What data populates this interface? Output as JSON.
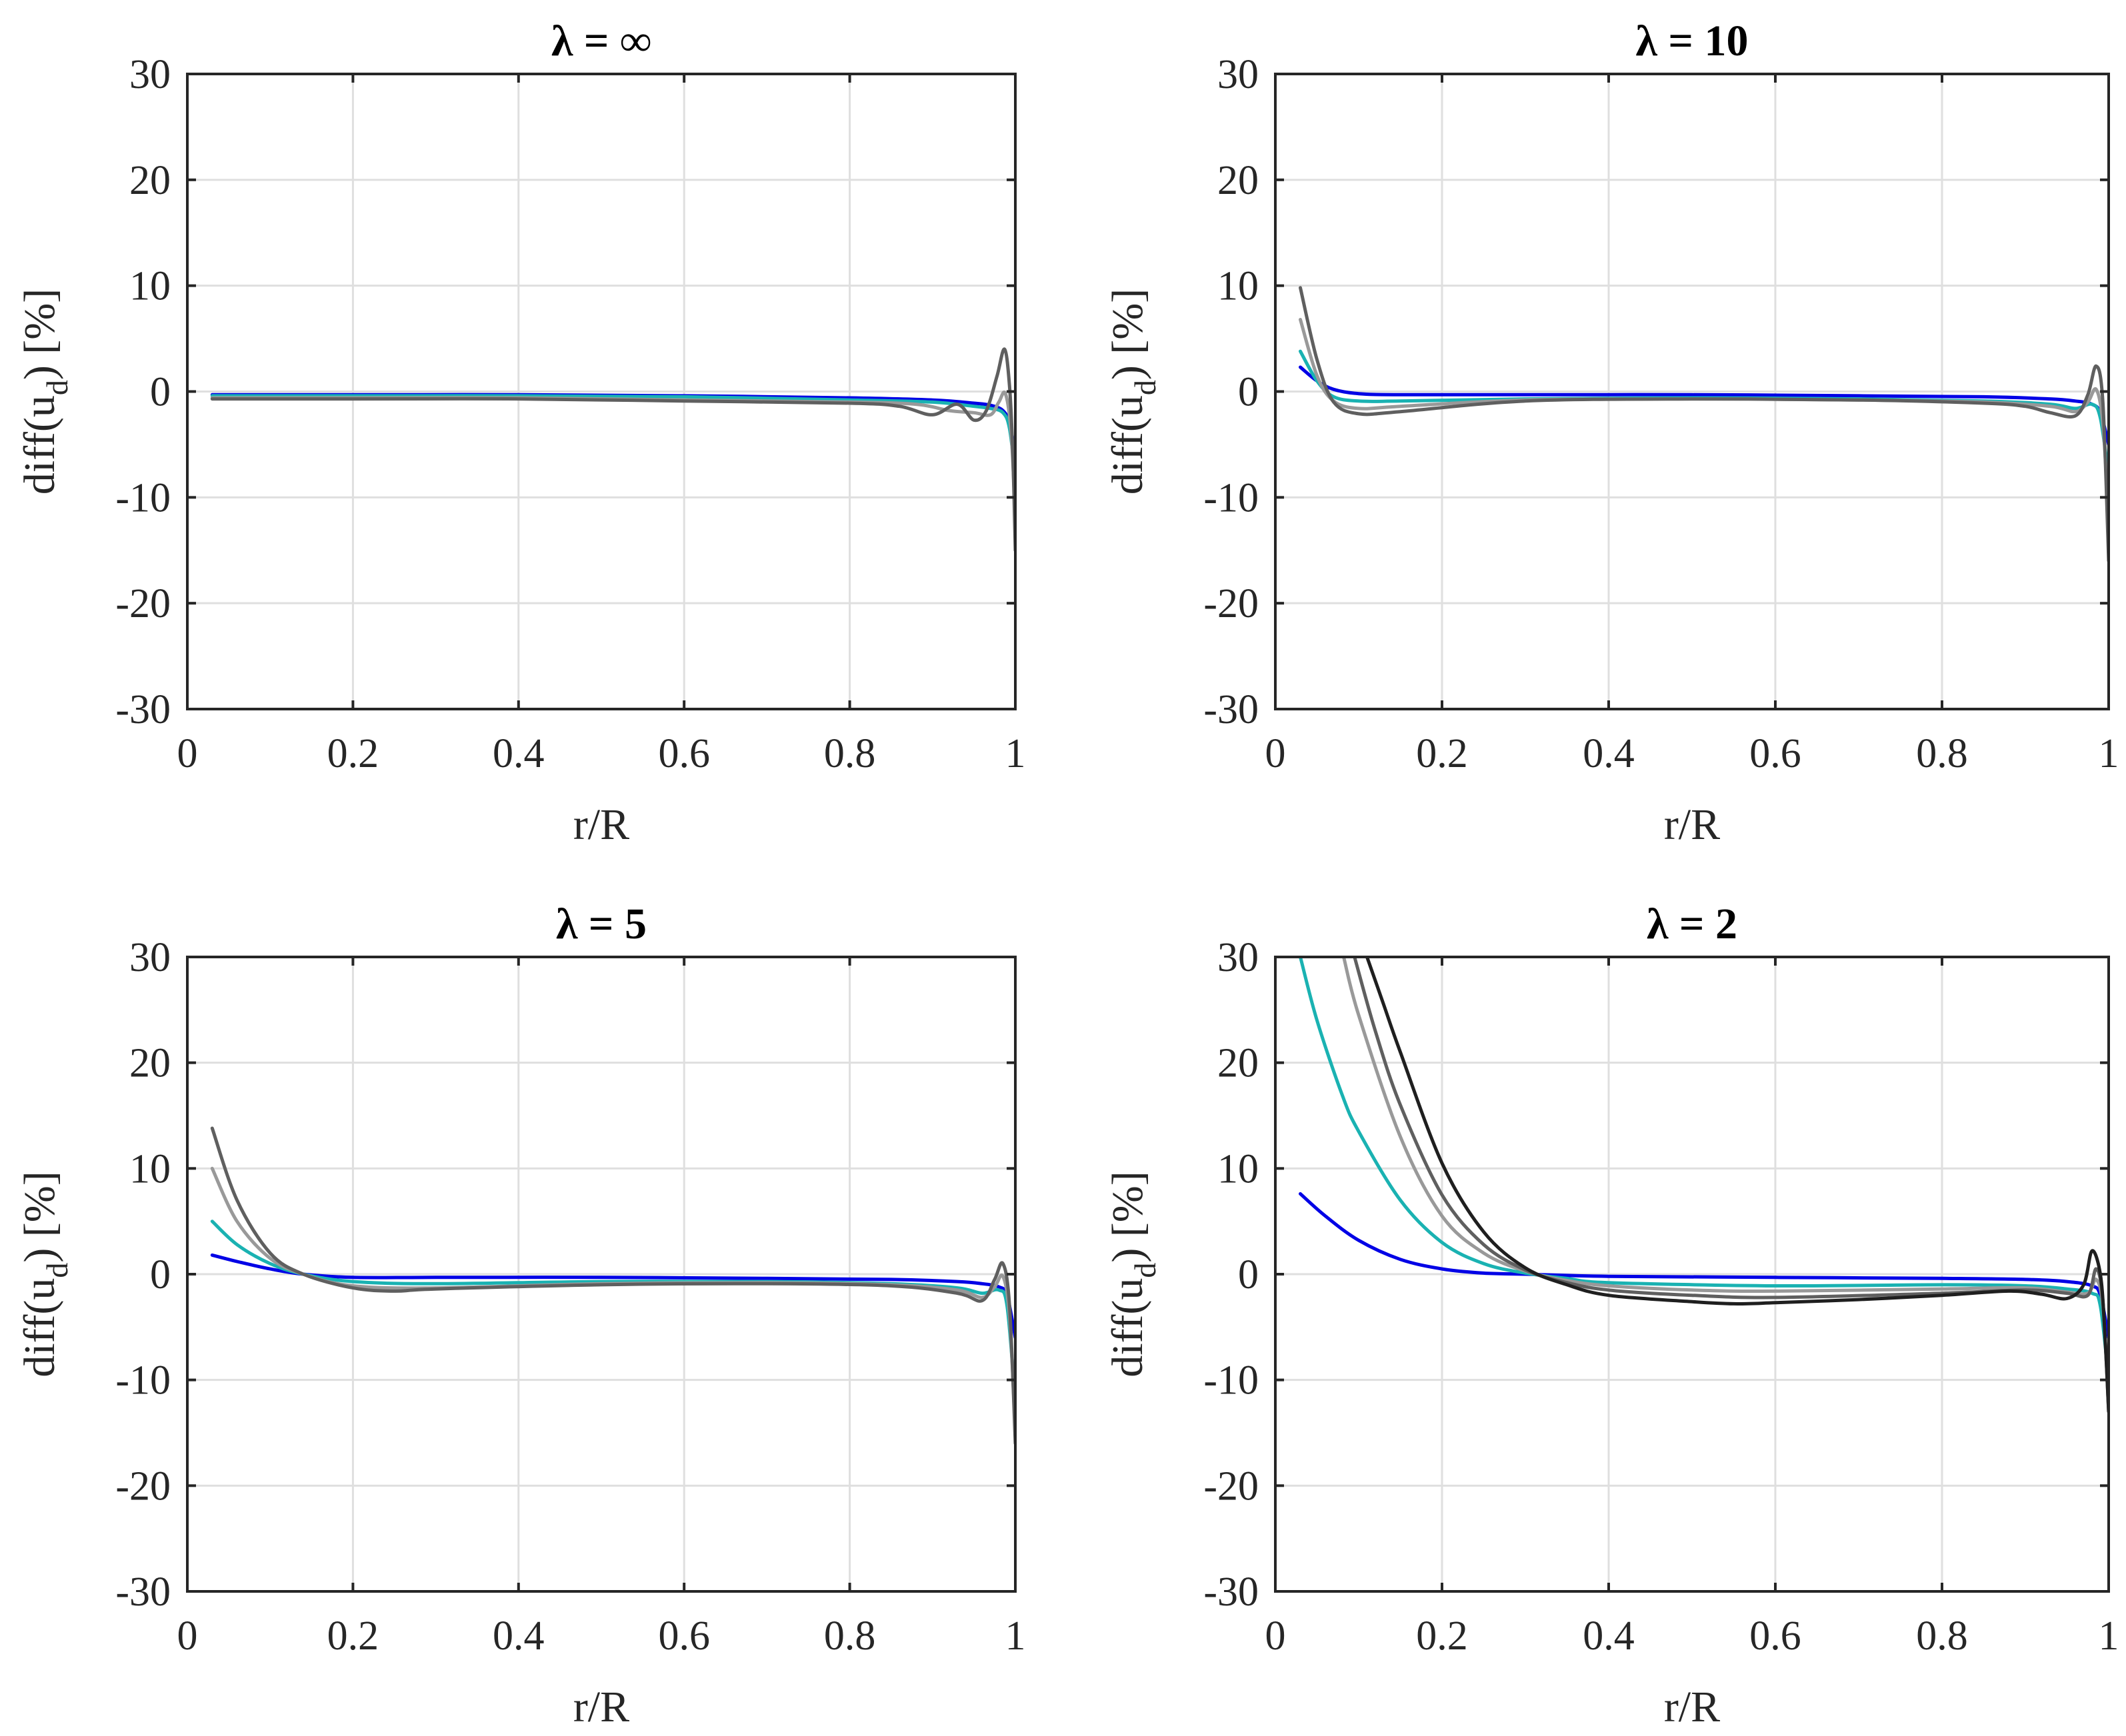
{
  "chart_data": [
    {
      "type": "line",
      "title": "λ = ∞",
      "xlabel": "r/R",
      "ylabel_main": "diff(u",
      "ylabel_sub": "d",
      "ylabel_end": ") [%]",
      "xlim": [
        0,
        1
      ],
      "ylim": [
        -30,
        30
      ],
      "xticks": [
        0,
        0.2,
        0.4,
        0.6,
        0.8,
        1
      ],
      "xtick_labels": [
        "0",
        "0.2",
        "0.4",
        "0.6",
        "0.8",
        "1"
      ],
      "yticks": [
        -30,
        -20,
        -10,
        0,
        10,
        20,
        30
      ],
      "ytick_labels": [
        "-30",
        "-20",
        "-10",
        "0",
        "10",
        "20",
        "30"
      ],
      "grid": true,
      "series": [
        {
          "name": "blue",
          "color": "#0000e6",
          "x": [
            0.03,
            0.2,
            0.4,
            0.6,
            0.8,
            0.9,
            0.95,
            0.97,
            0.985,
            0.993,
            1.0
          ],
          "y": [
            -0.3,
            -0.3,
            -0.3,
            -0.4,
            -0.6,
            -0.8,
            -1.1,
            -1.3,
            -1.8,
            -3.0,
            -6.0
          ]
        },
        {
          "name": "cyan",
          "color": "#1ab2b2",
          "x": [
            0.03,
            0.2,
            0.4,
            0.6,
            0.8,
            0.9,
            0.95,
            0.97,
            0.985,
            0.993,
            1.0
          ],
          "y": [
            -0.4,
            -0.4,
            -0.4,
            -0.5,
            -0.8,
            -1.0,
            -1.4,
            -1.6,
            -2.0,
            -3.5,
            -8.0
          ]
        },
        {
          "name": "light-grey",
          "color": "#999999",
          "x": [
            0.03,
            0.2,
            0.4,
            0.6,
            0.8,
            0.88,
            0.92,
            0.95,
            0.97,
            0.98,
            0.988,
            0.995,
            1.0
          ],
          "y": [
            -0.6,
            -0.6,
            -0.6,
            -0.8,
            -1.0,
            -1.2,
            -1.8,
            -2.0,
            -2.2,
            -1.0,
            -0.2,
            -4.0,
            -12.0
          ]
        },
        {
          "name": "dark-grey",
          "color": "#5f5f5f",
          "x": [
            0.03,
            0.2,
            0.4,
            0.6,
            0.8,
            0.86,
            0.9,
            0.93,
            0.95,
            0.965,
            0.978,
            0.987,
            0.993,
            0.997,
            1.0
          ],
          "y": [
            -0.7,
            -0.7,
            -0.7,
            -0.9,
            -1.1,
            -1.4,
            -2.2,
            -1.2,
            -2.7,
            -1.8,
            1.5,
            4.0,
            0.5,
            -6.0,
            -15.0
          ]
        }
      ]
    },
    {
      "type": "line",
      "title": "λ = 10",
      "xlabel": "r/R",
      "ylabel_main": "diff(u",
      "ylabel_sub": "d",
      "ylabel_end": ") [%]",
      "xlim": [
        0,
        1
      ],
      "ylim": [
        -30,
        30
      ],
      "xticks": [
        0,
        0.2,
        0.4,
        0.6,
        0.8,
        1
      ],
      "xtick_labels": [
        "0",
        "0.2",
        "0.4",
        "0.6",
        "0.8",
        "1"
      ],
      "yticks": [
        -30,
        -20,
        -10,
        0,
        10,
        20,
        30
      ],
      "ytick_labels": [
        "-30",
        "-20",
        "-10",
        "0",
        "10",
        "20",
        "30"
      ],
      "grid": true,
      "series": [
        {
          "name": "blue",
          "color": "#0000e6",
          "x": [
            0.03,
            0.05,
            0.07,
            0.1,
            0.15,
            0.3,
            0.5,
            0.7,
            0.85,
            0.93,
            0.96,
            0.98,
            0.99,
            1.0
          ],
          "y": [
            2.3,
            1.0,
            0.2,
            -0.2,
            -0.3,
            -0.3,
            -0.3,
            -0.4,
            -0.5,
            -0.7,
            -0.9,
            -1.2,
            -2.0,
            -5.0
          ]
        },
        {
          "name": "cyan",
          "color": "#1ab2b2",
          "x": [
            0.03,
            0.05,
            0.07,
            0.1,
            0.15,
            0.3,
            0.5,
            0.7,
            0.85,
            0.93,
            0.96,
            0.98,
            0.99,
            1.0
          ],
          "y": [
            3.8,
            1.0,
            -0.5,
            -0.9,
            -0.9,
            -0.7,
            -0.6,
            -0.7,
            -0.9,
            -1.2,
            -1.6,
            -1.2,
            -2.5,
            -8.0
          ]
        },
        {
          "name": "light-grey",
          "color": "#999999",
          "x": [
            0.03,
            0.05,
            0.07,
            0.1,
            0.15,
            0.3,
            0.5,
            0.7,
            0.85,
            0.93,
            0.96,
            0.975,
            0.985,
            0.993,
            1.0
          ],
          "y": [
            6.8,
            1.5,
            -0.9,
            -1.6,
            -1.4,
            -0.8,
            -0.7,
            -0.8,
            -1.0,
            -1.4,
            -1.9,
            -1.0,
            0.2,
            -3.0,
            -12.0
          ]
        },
        {
          "name": "dark-grey",
          "color": "#5f5f5f",
          "x": [
            0.03,
            0.05,
            0.07,
            0.1,
            0.15,
            0.3,
            0.5,
            0.7,
            0.85,
            0.9,
            0.93,
            0.96,
            0.975,
            0.985,
            0.993,
            1.0
          ],
          "y": [
            9.8,
            3.0,
            -1.0,
            -2.1,
            -1.9,
            -0.9,
            -0.7,
            -0.8,
            -1.1,
            -1.4,
            -2.0,
            -2.3,
            -0.3,
            2.4,
            -1.0,
            -16.0
          ]
        }
      ]
    },
    {
      "type": "line",
      "title": "λ = 5",
      "xlabel": "r/R",
      "ylabel_main": "diff(u",
      "ylabel_sub": "d",
      "ylabel_end": ") [%]",
      "xlim": [
        0,
        1
      ],
      "ylim": [
        -30,
        30
      ],
      "xticks": [
        0,
        0.2,
        0.4,
        0.6,
        0.8,
        1
      ],
      "xtick_labels": [
        "0",
        "0.2",
        "0.4",
        "0.6",
        "0.8",
        "1"
      ],
      "yticks": [
        -30,
        -20,
        -10,
        0,
        10,
        20,
        30
      ],
      "ytick_labels": [
        "-30",
        "-20",
        "-10",
        "0",
        "10",
        "20",
        "30"
      ],
      "grid": true,
      "series": [
        {
          "name": "blue",
          "color": "#0000e6",
          "x": [
            0.03,
            0.06,
            0.1,
            0.14,
            0.2,
            0.3,
            0.5,
            0.7,
            0.85,
            0.93,
            0.96,
            0.98,
            0.99,
            1.0
          ],
          "y": [
            1.8,
            1.2,
            0.5,
            0.0,
            -0.3,
            -0.3,
            -0.3,
            -0.4,
            -0.5,
            -0.7,
            -0.9,
            -1.2,
            -2.0,
            -6.0
          ]
        },
        {
          "name": "cyan",
          "color": "#1ab2b2",
          "x": [
            0.03,
            0.06,
            0.1,
            0.14,
            0.2,
            0.3,
            0.5,
            0.7,
            0.85,
            0.93,
            0.96,
            0.98,
            0.99,
            1.0
          ],
          "y": [
            5.0,
            2.8,
            1.0,
            0.0,
            -0.7,
            -0.9,
            -0.7,
            -0.7,
            -0.9,
            -1.3,
            -1.8,
            -1.5,
            -3.0,
            -12.0
          ]
        },
        {
          "name": "light-grey",
          "color": "#999999",
          "x": [
            0.03,
            0.06,
            0.1,
            0.14,
            0.2,
            0.3,
            0.5,
            0.7,
            0.85,
            0.93,
            0.96,
            0.975,
            0.985,
            0.993,
            1.0
          ],
          "y": [
            10.0,
            5.0,
            1.5,
            0.0,
            -1.1,
            -1.3,
            -0.9,
            -0.8,
            -1.0,
            -1.5,
            -2.2,
            -1.2,
            -0.2,
            -4.0,
            -15.0
          ]
        },
        {
          "name": "dark-grey",
          "color": "#5f5f5f",
          "x": [
            0.03,
            0.06,
            0.1,
            0.14,
            0.2,
            0.25,
            0.3,
            0.5,
            0.7,
            0.85,
            0.93,
            0.96,
            0.975,
            0.985,
            0.993,
            1.0
          ],
          "y": [
            13.8,
            7.0,
            2.0,
            0.0,
            -1.3,
            -1.6,
            -1.4,
            -1.0,
            -0.9,
            -1.1,
            -1.8,
            -2.5,
            -0.5,
            1.0,
            -3.0,
            -16.0
          ]
        }
      ]
    },
    {
      "type": "line",
      "title": "λ = 2",
      "xlabel": "r/R",
      "ylabel_main": "diff(u",
      "ylabel_sub": "d",
      "ylabel_end": ") [%]",
      "xlim": [
        0,
        1
      ],
      "ylim": [
        -30,
        30
      ],
      "xticks": [
        0,
        0.2,
        0.4,
        0.6,
        0.8,
        1
      ],
      "xtick_labels": [
        "0",
        "0.2",
        "0.4",
        "0.6",
        "0.8",
        "1"
      ],
      "yticks": [
        -30,
        -20,
        -10,
        0,
        10,
        20,
        30
      ],
      "ytick_labels": [
        "-30",
        "-20",
        "-10",
        "0",
        "10",
        "20",
        "30"
      ],
      "grid": true,
      "series": [
        {
          "name": "blue",
          "color": "#0000e6",
          "x": [
            0.03,
            0.06,
            0.1,
            0.15,
            0.2,
            0.25,
            0.3,
            0.4,
            0.6,
            0.8,
            0.9,
            0.95,
            0.98,
            0.99,
            1.0
          ],
          "y": [
            7.6,
            5.5,
            3.2,
            1.4,
            0.5,
            0.1,
            0.0,
            -0.2,
            -0.3,
            -0.4,
            -0.5,
            -0.7,
            -1.1,
            -2.0,
            -6.0
          ]
        },
        {
          "name": "cyan",
          "color": "#1ab2b2",
          "x": [
            0.03,
            0.05,
            0.08,
            0.1,
            0.15,
            0.2,
            0.25,
            0.3,
            0.35,
            0.4,
            0.6,
            0.8,
            0.9,
            0.95,
            0.98,
            0.99,
            1.0
          ],
          "y": [
            30.0,
            24.0,
            17.0,
            13.5,
            7.0,
            3.0,
            1.0,
            0.1,
            -0.4,
            -0.8,
            -1.1,
            -1.0,
            -1.1,
            -1.4,
            -1.8,
            -3.0,
            -10.0
          ]
        },
        {
          "name": "light-grey",
          "color": "#999999",
          "x": [
            0.082,
            0.1,
            0.15,
            0.2,
            0.25,
            0.3,
            0.35,
            0.4,
            0.5,
            0.6,
            0.8,
            0.9,
            0.95,
            0.975,
            0.985,
            0.993,
            1.0
          ],
          "y": [
            30.0,
            24.5,
            13.0,
            5.5,
            2.0,
            0.3,
            -0.6,
            -1.1,
            -1.5,
            -1.6,
            -1.4,
            -1.3,
            -1.7,
            -1.8,
            -0.5,
            -3.0,
            -12.0
          ]
        },
        {
          "name": "dark-grey",
          "color": "#5f5f5f",
          "x": [
            0.095,
            0.12,
            0.15,
            0.2,
            0.25,
            0.3,
            0.35,
            0.4,
            0.5,
            0.6,
            0.8,
            0.9,
            0.95,
            0.975,
            0.985,
            0.993,
            1.0
          ],
          "y": [
            30.0,
            23.0,
            16.0,
            7.5,
            2.8,
            0.4,
            -0.8,
            -1.5,
            -2.0,
            -2.2,
            -1.8,
            -1.5,
            -1.8,
            -2.0,
            0.5,
            -2.5,
            -13.0
          ]
        },
        {
          "name": "black",
          "color": "#1f1f1f",
          "x": [
            0.11,
            0.13,
            0.15,
            0.2,
            0.25,
            0.3,
            0.35,
            0.4,
            0.5,
            0.55,
            0.6,
            0.7,
            0.8,
            0.88,
            0.92,
            0.95,
            0.97,
            0.98,
            0.99,
            0.995,
            1.0
          ],
          "y": [
            30.0,
            25.5,
            21.0,
            10.5,
            4.0,
            0.6,
            -1.0,
            -2.0,
            -2.6,
            -2.8,
            -2.7,
            -2.4,
            -2.0,
            -1.6,
            -1.9,
            -2.3,
            -1.0,
            2.2,
            0.0,
            -5.0,
            -13.0
          ]
        }
      ]
    }
  ]
}
